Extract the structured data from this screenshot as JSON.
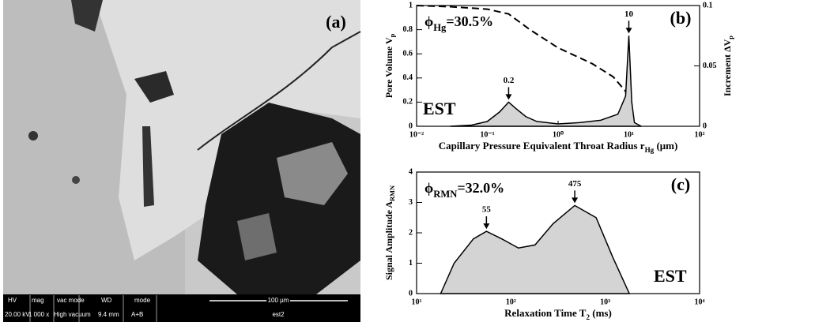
{
  "panel_a": {
    "label": "(a)",
    "info_bar": {
      "headers": [
        "HV",
        "mag",
        "vac mode",
        "WD",
        "mode"
      ],
      "values": [
        "20.00 kV",
        "1 000 x",
        "High vacuum",
        "9.4 mm",
        "A+B"
      ],
      "scale": "100 µm",
      "sample": "est2"
    }
  },
  "chart_data": [
    {
      "type": "area",
      "panel_label": "(b)",
      "sample": "EST",
      "porosity": {
        "symbol": "ϕ",
        "sub": "Hg",
        "text": "=30.5%"
      },
      "xlabel": {
        "text": "Capillary Pressure Equivalent Throat Radius r",
        "sub": "Hg",
        "unit": " (μm)"
      },
      "ylabel": {
        "text": "Pore Volume V",
        "sub": "p"
      },
      "y2label": {
        "text": "Increment ΔV",
        "sub": "p"
      },
      "xscale": "log",
      "xlim": [
        0.01,
        100
      ],
      "xticks": [
        {
          "value": 0.01,
          "label": "10⁻²"
        },
        {
          "value": 0.1,
          "label": "10⁻¹"
        },
        {
          "value": 1,
          "label": "10⁰"
        },
        {
          "value": 10,
          "label": "10¹"
        },
        {
          "value": 100,
          "label": "10²"
        }
      ],
      "ylim": [
        0,
        1
      ],
      "yticks": [
        0,
        0.2,
        0.4,
        0.6,
        0.8,
        1
      ],
      "y2lim": [
        0,
        0.1
      ],
      "y2ticks": [
        0,
        0.05,
        0.1
      ],
      "series": [
        {
          "style": "dashed",
          "color": "#000000",
          "x": [
            0.01,
            0.03,
            0.1,
            0.2,
            0.4,
            1,
            3,
            6,
            9,
            10,
            11
          ],
          "values": [
            1.0,
            0.99,
            0.97,
            0.93,
            0.8,
            0.65,
            0.52,
            0.41,
            0.29,
            0.15,
            0
          ]
        },
        {
          "style": "filled",
          "axis": "y2",
          "color": "#000000",
          "fill": "#d4d4d4",
          "x": [
            0.03,
            0.06,
            0.1,
            0.15,
            0.2,
            0.25,
            0.35,
            0.5,
            1,
            2,
            4,
            7,
            9,
            10,
            11,
            12,
            15
          ],
          "values": [
            0,
            0.001,
            0.004,
            0.012,
            0.02,
            0.015,
            0.008,
            0.004,
            0.002,
            0.003,
            0.005,
            0.01,
            0.025,
            0.075,
            0.02,
            0.003,
            0
          ]
        }
      ],
      "annotations": [
        {
          "text": "0.2",
          "x": 0.2
        },
        {
          "text": "10",
          "x": 10
        }
      ]
    },
    {
      "type": "area",
      "panel_label": "(c)",
      "sample": "EST",
      "porosity": {
        "symbol": "ϕ",
        "sub": "RMN",
        "text": "=32.0%"
      },
      "xlabel": {
        "text": "Relaxation Time T",
        "sub": "2",
        "unit": " (ms)"
      },
      "ylabel": {
        "text": "Signal Amplitude A",
        "sub": "RMN"
      },
      "xscale": "log",
      "xlim": [
        10,
        10000
      ],
      "xticks": [
        {
          "value": 10,
          "label": "10¹"
        },
        {
          "value": 100,
          "label": "10²"
        },
        {
          "value": 1000,
          "label": "10³"
        },
        {
          "value": 10000,
          "label": "10⁴"
        }
      ],
      "ylim": [
        0,
        4
      ],
      "yticks": [
        0,
        1,
        2,
        3,
        4
      ],
      "series": [
        {
          "style": "filled",
          "color": "#000000",
          "fill": "#d4d4d4",
          "x": [
            18,
            25,
            40,
            55,
            80,
            120,
            180,
            280,
            475,
            800,
            1200,
            1800
          ],
          "values": [
            0,
            1.0,
            1.8,
            2.05,
            1.8,
            1.5,
            1.6,
            2.3,
            2.9,
            2.5,
            1.2,
            0
          ]
        }
      ],
      "annotations": [
        {
          "text": "55",
          "x": 55
        },
        {
          "text": "475",
          "x": 475
        }
      ]
    }
  ]
}
